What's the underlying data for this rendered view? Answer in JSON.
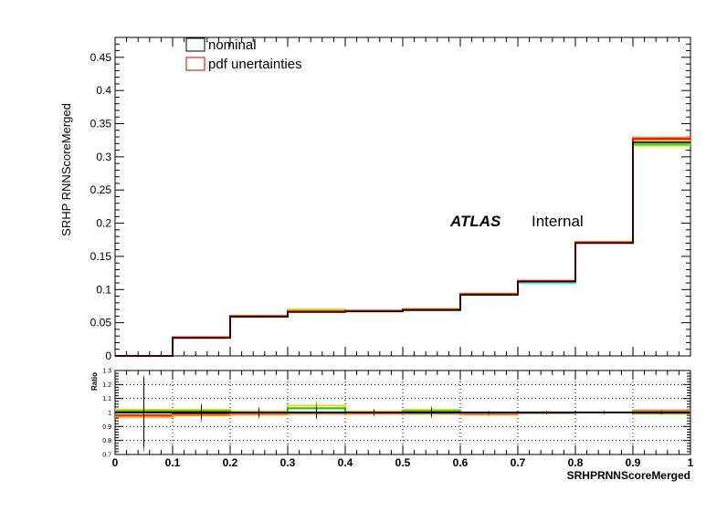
{
  "chart_data": [
    {
      "type": "line",
      "panel": "main",
      "ylabel": "SRHP RNNScoreMerged",
      "xlim": [
        0,
        1
      ],
      "ylim": [
        0,
        0.48
      ],
      "yticks": [
        "0",
        "0.05",
        "0.1",
        "0.15",
        "0.2",
        "0.25",
        "0.3",
        "0.35",
        "0.4",
        "0.45"
      ],
      "bin_edges": [
        0,
        0.1,
        0.2,
        0.3,
        0.4,
        0.5,
        0.6,
        0.7,
        0.8,
        0.9,
        1.0
      ],
      "series": [
        {
          "name": "nominal",
          "color": "#000000",
          "values": [
            0.0,
            0.027,
            0.059,
            0.066,
            0.067,
            0.069,
            0.092,
            0.112,
            0.17,
            0.322
          ]
        },
        {
          "name": "pdf unertainties",
          "color": "#ff0000",
          "values": [
            0.0,
            0.028,
            0.06,
            0.067,
            0.068,
            0.07,
            0.093,
            0.113,
            0.171,
            0.327
          ]
        }
      ],
      "variations": [
        {
          "color": "#ffd700",
          "values": [
            0.0,
            0.027,
            0.06,
            0.07,
            0.068,
            0.071,
            0.094,
            0.113,
            0.172,
            0.325
          ]
        },
        {
          "color": "#00cc00",
          "values": [
            0.0,
            0.027,
            0.059,
            0.068,
            0.067,
            0.07,
            0.093,
            0.112,
            0.17,
            0.319
          ]
        },
        {
          "color": "#00ffff",
          "values": [
            0.0,
            0.027,
            0.059,
            0.067,
            0.067,
            0.069,
            0.092,
            0.11,
            0.17,
            0.321
          ]
        },
        {
          "color": "#ff8800",
          "values": [
            0.0,
            0.028,
            0.06,
            0.068,
            0.068,
            0.07,
            0.093,
            0.113,
            0.171,
            0.329
          ]
        },
        {
          "color": "#cccc00",
          "values": [
            0.0,
            0.027,
            0.059,
            0.069,
            0.067,
            0.07,
            0.093,
            0.112,
            0.17,
            0.317
          ]
        }
      ],
      "legend": {
        "placement": "top-left",
        "entries": [
          {
            "label": "nominal",
            "color": "#000000"
          },
          {
            "label": "pdf unertainties",
            "color": "#cc0000"
          }
        ]
      },
      "atlas_label": "ATLAS",
      "atlas_status": "Internal"
    },
    {
      "type": "line",
      "panel": "ratio",
      "ylabel": "Ratio",
      "xlabel": "SRHPRNNScoreMerged",
      "xlim": [
        0,
        1
      ],
      "ylim": [
        0.7,
        1.3
      ],
      "yticks": [
        "0.7",
        "0.8",
        "0.9",
        "1",
        "1.1",
        "1.2",
        "1.3"
      ],
      "xticks": [
        "0",
        "0.1",
        "0.2",
        "0.3",
        "0.4",
        "0.5",
        "0.6",
        "0.7",
        "0.8",
        "0.9",
        "1"
      ],
      "grid": true,
      "bin_edges": [
        0,
        0.1,
        0.2,
        0.3,
        0.4,
        0.5,
        0.6,
        0.7,
        0.8,
        0.9,
        1.0
      ],
      "series": [
        {
          "color": "#ffd700",
          "values": [
            1.02,
            1.02,
            1.01,
            1.05,
            1.01,
            1.02,
            1.0,
            1.0,
            1.0,
            0.99
          ],
          "errors": [
            0.25,
            0.05,
            0.03,
            0.04,
            0.02,
            0.03,
            0.01,
            0.01,
            0.01,
            0.01
          ]
        },
        {
          "color": "#00cc00",
          "values": [
            1.01,
            1.01,
            1.0,
            1.03,
            1.0,
            1.01,
            0.99,
            1.0,
            1.0,
            0.995
          ],
          "errors": [
            0.25,
            0.05,
            0.03,
            0.04,
            0.02,
            0.03,
            0.01,
            0.01,
            0.01,
            0.01
          ]
        },
        {
          "color": "#ff0000",
          "values": [
            0.98,
            0.99,
            0.99,
            1.0,
            0.995,
            0.995,
            0.99,
            1.0,
            1.0,
            1.01
          ],
          "errors": [
            0.25,
            0.05,
            0.03,
            0.04,
            0.02,
            0.03,
            0.01,
            0.01,
            0.01,
            0.01
          ]
        },
        {
          "color": "#ff8800",
          "values": [
            0.97,
            0.98,
            0.985,
            0.99,
            0.99,
            0.99,
            0.985,
            0.995,
            1.0,
            1.015
          ],
          "errors": [
            0.25,
            0.05,
            0.03,
            0.04,
            0.02,
            0.03,
            0.01,
            0.01,
            0.01,
            0.01
          ]
        },
        {
          "color": "#000000",
          "values": [
            1.0,
            1.0,
            1.0,
            1.0,
            1.0,
            1.0,
            1.0,
            1.0,
            1.0,
            1.0
          ],
          "errors": [
            0.25,
            0.05,
            0.03,
            0.04,
            0.02,
            0.03,
            0.01,
            0.01,
            0.01,
            0.01
          ]
        }
      ]
    }
  ]
}
